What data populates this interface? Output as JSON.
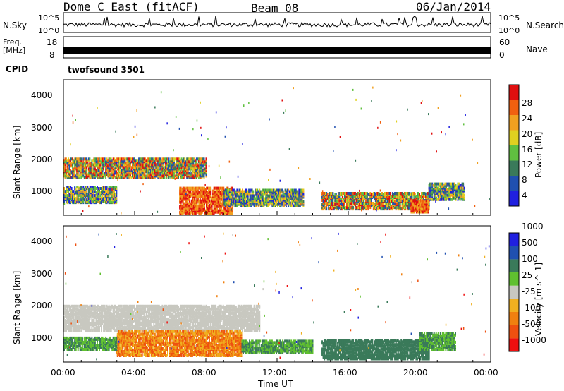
{
  "header": {
    "station": "Dome C East (fitACF)",
    "beam": "Beam 08",
    "date": "06/Jan/2014"
  },
  "aux_panels": {
    "nsky_label": "N.Sky",
    "nsky_ticks": [
      "10^5",
      "10^0"
    ],
    "nsearch_label": "N.Search",
    "nsearch_ticks": [
      "10^5",
      "10^0"
    ],
    "freq_label": "Freq.",
    "freq_unit": "[MHz]",
    "freq_ticks": [
      "18",
      "8"
    ],
    "nave_label": "Nave",
    "nave_ticks": [
      "60",
      "0"
    ],
    "cpid_label": "CPID",
    "cpid_value": "twofsound 3501"
  },
  "colors": {
    "power": [
      "#2020e0",
      "#2050b0",
      "#3a7a5a",
      "#60c040",
      "#e0d020",
      "#f0a020",
      "#f06010",
      "#e01010"
    ],
    "velocity": [
      "#ee1010",
      "#ee5010",
      "#f08010",
      "#f0b020",
      "#c8c8c0",
      "#60c030",
      "#3a7a5a",
      "#2050b0",
      "#2020e0"
    ],
    "ground_scatter": "#c8c8c0"
  },
  "chart_data": [
    {
      "type": "heatmap",
      "panel": "power",
      "ylabel": "Slant Range [km]",
      "y_ticks": [
        "1000",
        "2000",
        "3000",
        "4000"
      ],
      "ylim": [
        200,
        4500
      ],
      "xlim": [
        0,
        24
      ],
      "colorbar_label": "Power [dB]",
      "colorbar_ticks": [
        "4",
        "8",
        "12",
        "16",
        "20",
        "24",
        "28"
      ],
      "bands": [
        {
          "t": [
            0.0,
            8.0
          ],
          "r": [
            1400,
            2000
          ],
          "level": "mixed_high"
        },
        {
          "t": [
            0.0,
            3.0
          ],
          "r": [
            600,
            1100
          ],
          "level": "mixed_mid"
        },
        {
          "t": [
            6.5,
            9.5
          ],
          "r": [
            250,
            1100
          ],
          "level": "strong"
        },
        {
          "t": [
            9.0,
            13.5
          ],
          "r": [
            500,
            1000
          ],
          "level": "mixed_mid"
        },
        {
          "t": [
            14.5,
            20.5
          ],
          "r": [
            400,
            900
          ],
          "level": "mixed_high"
        },
        {
          "t": [
            19.5,
            20.5
          ],
          "r": [
            300,
            700
          ],
          "level": "strong"
        },
        {
          "t": [
            20.5,
            22.5
          ],
          "r": [
            700,
            1200
          ],
          "level": "mixed_mid"
        }
      ]
    },
    {
      "type": "heatmap",
      "panel": "velocity",
      "ylabel": "Slant Range [km]",
      "y_ticks": [
        "1000",
        "2000",
        "3000",
        "4000"
      ],
      "ylim": [
        200,
        4500
      ],
      "xlim": [
        0,
        24
      ],
      "colorbar_label": "Velocity [m s^-1]",
      "colorbar_ticks": [
        "-1000",
        "-500",
        "-100",
        "-25",
        "25",
        "100",
        "500",
        "1000"
      ],
      "bands": [
        {
          "t": [
            0.0,
            11.0
          ],
          "r": [
            1200,
            2000
          ],
          "level": "ground"
        },
        {
          "t": [
            3.0,
            10.0
          ],
          "r": [
            400,
            1200
          ],
          "level": "neg"
        },
        {
          "t": [
            0.0,
            3.0
          ],
          "r": [
            600,
            1000
          ],
          "level": "pos"
        },
        {
          "t": [
            10.0,
            14.0
          ],
          "r": [
            500,
            900
          ],
          "level": "pos"
        },
        {
          "t": [
            14.5,
            20.5
          ],
          "r": [
            300,
            900
          ],
          "level": "pos_strong"
        },
        {
          "t": [
            20.0,
            22.0
          ],
          "r": [
            600,
            1100
          ],
          "level": "pos"
        }
      ]
    }
  ],
  "x_axis": {
    "label": "Time UT",
    "ticks": [
      "00:00",
      "04:00",
      "08:00",
      "12:00",
      "16:00",
      "20:00",
      "00:00"
    ]
  }
}
